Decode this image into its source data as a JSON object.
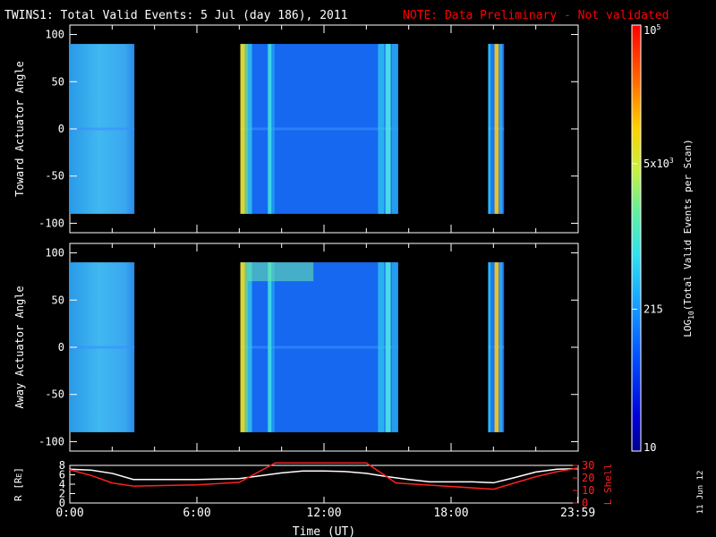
{
  "title_main": "TWINS1: Total Valid Events:  5 Jul (day 186), 2011",
  "title_note": "NOTE: Data Preliminary - Not validated",
  "side_date": "11 Jun 12",
  "colors": {
    "background": "#000000",
    "axis": "#ffffff",
    "note": "#ff0000",
    "lshell": "#ff2020",
    "radius": "#ffffff"
  },
  "chart_data": [
    {
      "type": "heatmap",
      "panel": "top",
      "ylabel": "Toward Actuator Angle",
      "ylim": [
        -110,
        110
      ],
      "yticks": [
        100,
        50,
        0,
        -50,
        -100
      ],
      "ytick_labels": [
        "100",
        "50",
        "0",
        "-50",
        "-100"
      ],
      "xlim": [
        0,
        24
      ],
      "data_angle_range": [
        -90,
        90
      ],
      "segments": [
        {
          "start": 0.0,
          "end": 3.05
        },
        {
          "start": 8.05,
          "end": 15.5
        },
        {
          "start": 19.75,
          "end": 20.5
        }
      ]
    },
    {
      "type": "heatmap",
      "panel": "middle",
      "ylabel": "Away Actuator Angle",
      "ylim": [
        -110,
        110
      ],
      "yticks": [
        100,
        50,
        0,
        -50,
        -100
      ],
      "ytick_labels": [
        "100",
        "50",
        "0",
        "-50",
        "-100"
      ],
      "xlim": [
        0,
        24
      ],
      "data_angle_range": [
        -90,
        90
      ],
      "segments": [
        {
          "start": 0.0,
          "end": 3.05
        },
        {
          "start": 8.05,
          "end": 15.5
        },
        {
          "start": 19.75,
          "end": 20.5
        }
      ]
    },
    {
      "type": "line",
      "panel": "bottom",
      "xlabel": "Time (UT)",
      "ylabel_left": "R [R",
      "ylabel_left_sub": "E",
      "ylabel_left_end": "]",
      "ylabel_right": "L Shell",
      "ylim_left": [
        0,
        8
      ],
      "yticks_left": [
        "0",
        "2",
        "4",
        "6",
        "8"
      ],
      "ylim_right": [
        0,
        30
      ],
      "yticks_right": [
        "0",
        "10",
        "20",
        "30"
      ],
      "xlim": [
        0,
        24
      ],
      "xticks": [
        {
          "hour": 0,
          "label": "0:00"
        },
        {
          "hour": 6,
          "label": "6:00"
        },
        {
          "hour": 12,
          "label": "12:00"
        },
        {
          "hour": 18,
          "label": "18:00"
        },
        {
          "hour": 23.983,
          "label": "23:59"
        }
      ],
      "series": [
        {
          "name": "",
          "axis": "left",
          "color": "#ffffff",
          "x": [
            0,
            1,
            2,
            3,
            4,
            6,
            8,
            10,
            11,
            12,
            13,
            14,
            15,
            16,
            17,
            18,
            19,
            20,
            21,
            22,
            23,
            24
          ],
          "y": [
            7.2,
            7.0,
            6.3,
            5.0,
            5.0,
            5.0,
            5.2,
            6.4,
            6.8,
            6.8,
            6.7,
            6.3,
            5.6,
            5.0,
            4.5,
            4.5,
            4.5,
            4.3,
            5.4,
            6.6,
            7.2,
            7.3
          ]
        },
        {
          "name": "",
          "axis": "right",
          "color": "#ff2020",
          "x": [
            0,
            1,
            2,
            3,
            6,
            8,
            9.7,
            14.0,
            15.4,
            20.0,
            21.0,
            22.0,
            23.0,
            24.0
          ],
          "y": [
            26.5,
            22.0,
            16.0,
            13.5,
            14.5,
            16.5,
            32.0,
            32.0,
            16.0,
            11.0,
            16.0,
            21.0,
            25.0,
            28.0
          ]
        }
      ]
    },
    {
      "type": "colorbar",
      "label": "LOG",
      "label_sub": "10",
      "label_rest": "(Total Valid  Events per Scan)",
      "scale": "log",
      "range": [
        10,
        100000
      ],
      "ticks": [
        {
          "value": 100000,
          "base": "10",
          "exp": "5"
        },
        {
          "value": 5000,
          "base": "5x10",
          "exp": "3"
        },
        {
          "value": 215,
          "base": "215",
          "exp": ""
        },
        {
          "value": 10,
          "base": "10",
          "exp": ""
        }
      ]
    }
  ]
}
